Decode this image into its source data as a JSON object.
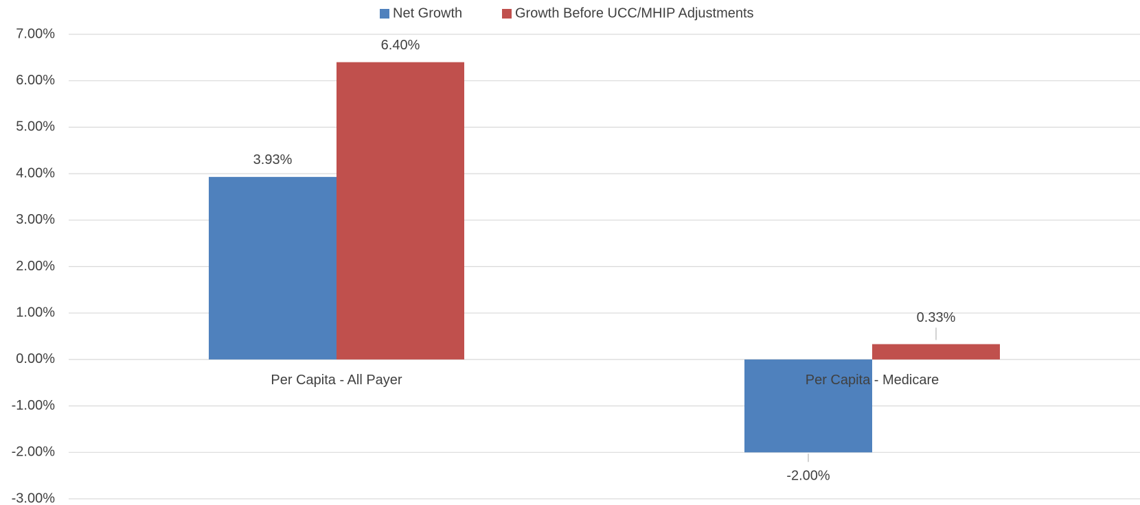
{
  "chart_data": {
    "type": "bar",
    "categories": [
      "Per Capita  - All Payer",
      "Per Capita - Medicare"
    ],
    "series": [
      {
        "name": "Net Growth",
        "color": "#4f81bd",
        "values": [
          3.93,
          -2.0
        ],
        "value_labels": [
          "3.93%",
          "-2.00%"
        ]
      },
      {
        "name": "Growth Before UCC/MHIP Adjustments",
        "color": "#c0504d",
        "values": [
          6.4,
          0.33
        ],
        "value_labels": [
          "6.40%",
          "0.33%"
        ]
      }
    ],
    "ylim": [
      -3,
      7
    ],
    "yticks": [
      {
        "value": -3,
        "label": "-3.00%"
      },
      {
        "value": -2,
        "label": "-2.00%"
      },
      {
        "value": -1,
        "label": "-1.00%"
      },
      {
        "value": 0,
        "label": "0.00%"
      },
      {
        "value": 1,
        "label": "1.00%"
      },
      {
        "value": 2,
        "label": "2.00%"
      },
      {
        "value": 3,
        "label": "3.00%"
      },
      {
        "value": 4,
        "label": "4.00%"
      },
      {
        "value": 5,
        "label": "5.00%"
      },
      {
        "value": 6,
        "label": "6.00%"
      },
      {
        "value": 7,
        "label": "7.00%"
      }
    ],
    "grid": true,
    "legend": "top"
  }
}
